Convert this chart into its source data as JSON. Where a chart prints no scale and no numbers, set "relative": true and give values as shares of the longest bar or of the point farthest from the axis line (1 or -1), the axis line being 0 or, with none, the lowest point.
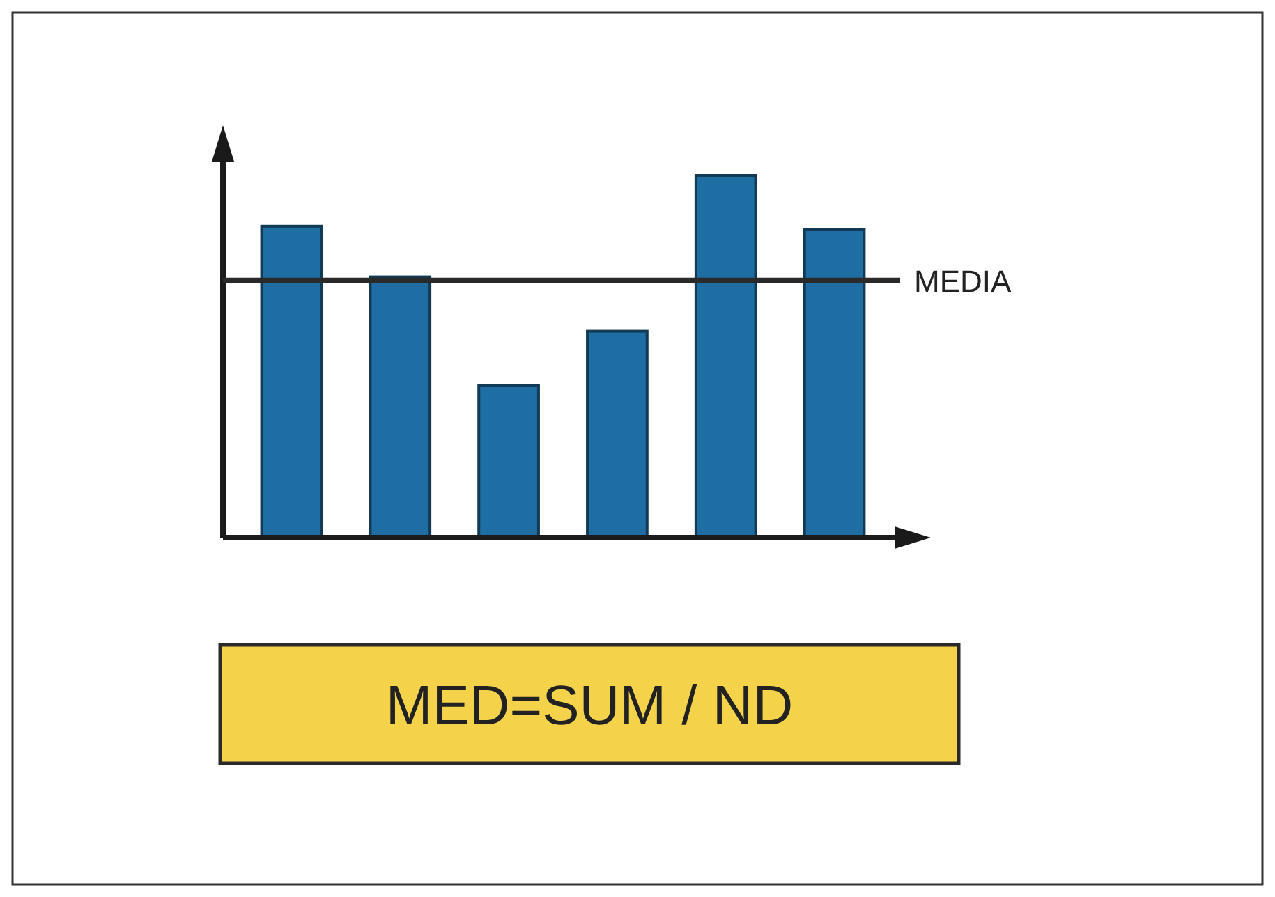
{
  "chart_data": {
    "type": "bar",
    "relative": true,
    "categories": [
      null,
      null,
      null,
      null,
      null,
      null
    ],
    "values": [
      0.86,
      0.72,
      0.42,
      0.57,
      1,
      0.85
    ],
    "color": "#1f6ea3",
    "ref_lines": [
      {
        "axis": "y",
        "value": 0.71,
        "label": "MEDIA",
        "color": "#2a2a2a"
      }
    ],
    "annotations": [
      "MED=SUM / ND"
    ]
  }
}
